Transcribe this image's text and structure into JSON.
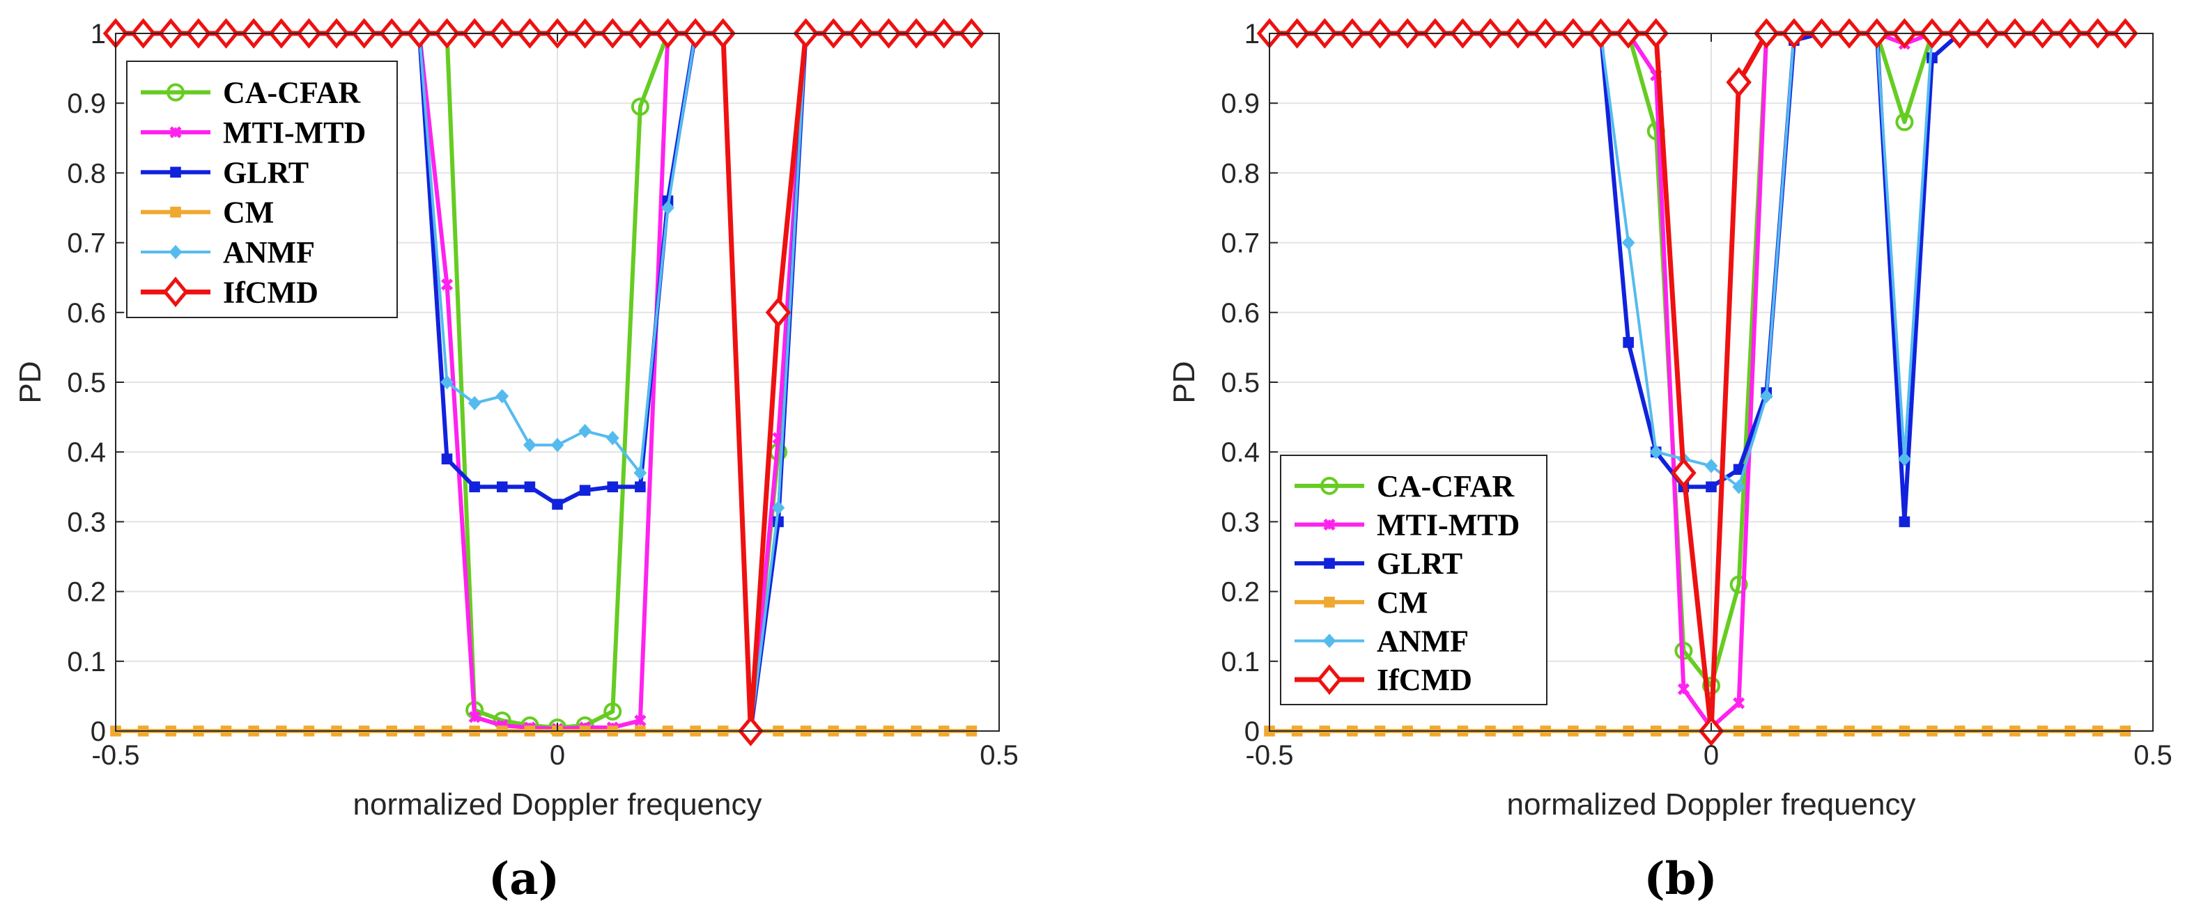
{
  "figure": {
    "panels": [
      "(a)",
      "(b)"
    ]
  },
  "chart_data": [
    {
      "type": "line",
      "panel_label": "(a)",
      "xlabel": "normalized Doppler frequency",
      "ylabel": "PD",
      "xlim": [
        -0.5,
        0.5
      ],
      "ylim": [
        0,
        1
      ],
      "xticks": [
        -0.5,
        0,
        0.5
      ],
      "xtick_labels": [
        "-0.5",
        "0",
        "0.5"
      ],
      "yticks": [
        0,
        0.1,
        0.2,
        0.3,
        0.4,
        0.5,
        0.6,
        0.7,
        0.8,
        0.9,
        1
      ],
      "ytick_labels": [
        "0",
        "0.1",
        "0.2",
        "0.3",
        "0.4",
        "0.5",
        "0.6",
        "0.7",
        "0.8",
        "0.9",
        "1"
      ],
      "grid": true,
      "legend_position": "top-left",
      "x": [
        -0.5,
        -0.46875,
        -0.4375,
        -0.40625,
        -0.375,
        -0.34375,
        -0.3125,
        -0.28125,
        -0.25,
        -0.21875,
        -0.1875,
        -0.15625,
        -0.125,
        -0.09375,
        -0.0625,
        -0.03125,
        0,
        0.03125,
        0.0625,
        0.09375,
        0.125,
        0.15625,
        0.1875,
        0.21875,
        0.25,
        0.28125,
        0.3125,
        0.34375,
        0.375,
        0.40625,
        0.4375,
        0.46875
      ],
      "series": [
        {
          "name": "CA-CFAR",
          "color": "#66cc22",
          "marker": "circle",
          "values": [
            1,
            1,
            1,
            1,
            1,
            1,
            1,
            1,
            1,
            1,
            1,
            1,
            1,
            0.03,
            0.015,
            0.008,
            0.005,
            0.008,
            0.028,
            0.895,
            1,
            1,
            1,
            0,
            0.4,
            1,
            1,
            1,
            1,
            1,
            1,
            1
          ]
        },
        {
          "name": "MTI-MTD",
          "color": "#ff22ee",
          "marker": "x",
          "values": [
            1,
            1,
            1,
            1,
            1,
            1,
            1,
            1,
            1,
            1,
            1,
            1,
            0.64,
            0.02,
            0.008,
            0.005,
            0.003,
            0.005,
            0.005,
            0.015,
            1,
            1,
            1,
            0,
            0.42,
            1,
            1,
            1,
            1,
            1,
            1,
            1
          ]
        },
        {
          "name": "GLRT",
          "color": "#1122dd",
          "marker": "square",
          "values": [
            1,
            1,
            1,
            1,
            1,
            1,
            1,
            1,
            1,
            1,
            1,
            1,
            0.39,
            0.35,
            0.35,
            0.35,
            0.325,
            0.345,
            0.35,
            0.35,
            0.76,
            1,
            1,
            0,
            0.3,
            1,
            1,
            1,
            1,
            1,
            1,
            1
          ]
        },
        {
          "name": "CM",
          "color": "#f0a830",
          "marker": "square",
          "values": [
            0,
            0,
            0,
            0,
            0,
            0,
            0,
            0,
            0,
            0,
            0,
            0,
            0,
            0,
            0,
            0,
            0,
            0,
            0,
            0,
            0,
            0,
            0,
            0,
            0,
            0,
            0,
            0,
            0,
            0,
            0,
            0
          ]
        },
        {
          "name": "ANMF",
          "color": "#55bbee",
          "marker": "diamond",
          "values": [
            1,
            1,
            1,
            1,
            1,
            1,
            1,
            1,
            1,
            1,
            1,
            1,
            0.5,
            0.47,
            0.48,
            0.41,
            0.41,
            0.43,
            0.42,
            0.37,
            0.75,
            1,
            1,
            0,
            0.32,
            1,
            1,
            1,
            1,
            1,
            1,
            1
          ]
        },
        {
          "name": "IfCMD",
          "color": "#ee1111",
          "marker": "diamond-open",
          "values": [
            1,
            1,
            1,
            1,
            1,
            1,
            1,
            1,
            1,
            1,
            1,
            1,
            1,
            1,
            1,
            1,
            1,
            1,
            1,
            1,
            1,
            1,
            1,
            0,
            0.6,
            1,
            1,
            1,
            1,
            1,
            1,
            1
          ]
        }
      ]
    },
    {
      "type": "line",
      "panel_label": "(b)",
      "xlabel": "normalized Doppler frequency",
      "ylabel": "PD",
      "xlim": [
        -0.5,
        0.5
      ],
      "ylim": [
        0,
        1
      ],
      "xticks": [
        -0.5,
        0,
        0.5
      ],
      "xtick_labels": [
        "-0.5",
        "0",
        "0.5"
      ],
      "yticks": [
        0,
        0.1,
        0.2,
        0.3,
        0.4,
        0.5,
        0.6,
        0.7,
        0.8,
        0.9,
        1
      ],
      "ytick_labels": [
        "0",
        "0.1",
        "0.2",
        "0.3",
        "0.4",
        "0.5",
        "0.6",
        "0.7",
        "0.8",
        "0.9",
        "1"
      ],
      "grid": true,
      "legend_position": "bottom-left",
      "x": [
        -0.5,
        -0.46875,
        -0.4375,
        -0.40625,
        -0.375,
        -0.34375,
        -0.3125,
        -0.28125,
        -0.25,
        -0.21875,
        -0.1875,
        -0.15625,
        -0.125,
        -0.09375,
        -0.0625,
        -0.03125,
        0,
        0.03125,
        0.0625,
        0.09375,
        0.125,
        0.15625,
        0.1875,
        0.21875,
        0.25,
        0.28125,
        0.3125,
        0.34375,
        0.375,
        0.40625,
        0.4375,
        0.46875
      ],
      "series": [
        {
          "name": "CA-CFAR",
          "color": "#66cc22",
          "marker": "circle",
          "values": [
            1,
            1,
            1,
            1,
            1,
            1,
            1,
            1,
            1,
            1,
            1,
            1,
            1,
            1,
            0.86,
            0.115,
            0.065,
            0.21,
            1,
            1,
            1,
            1,
            1,
            0.873,
            1,
            1,
            1,
            1,
            1,
            1,
            1,
            1
          ]
        },
        {
          "name": "MTI-MTD",
          "color": "#ff22ee",
          "marker": "x",
          "values": [
            1,
            1,
            1,
            1,
            1,
            1,
            1,
            1,
            1,
            1,
            1,
            1,
            1,
            1,
            0.94,
            0.06,
            0.005,
            0.04,
            1,
            1,
            1,
            1,
            1,
            0.985,
            1,
            1,
            1,
            1,
            1,
            1,
            1,
            1
          ]
        },
        {
          "name": "GLRT",
          "color": "#1122dd",
          "marker": "square",
          "values": [
            1,
            1,
            1,
            1,
            1,
            1,
            1,
            1,
            1,
            1,
            1,
            1,
            1,
            0.557,
            0.4,
            0.35,
            0.35,
            0.375,
            0.485,
            0.99,
            1,
            1,
            1,
            0.3,
            0.965,
            1,
            1,
            1,
            1,
            1,
            1,
            1
          ]
        },
        {
          "name": "CM",
          "color": "#f0a830",
          "marker": "square",
          "values": [
            0,
            0,
            0,
            0,
            0,
            0,
            0,
            0,
            0,
            0,
            0,
            0,
            0,
            0,
            0,
            0,
            0,
            0,
            0,
            0,
            0,
            0,
            0,
            0,
            0,
            0,
            0,
            0,
            0,
            0,
            0,
            0
          ]
        },
        {
          "name": "ANMF",
          "color": "#55bbee",
          "marker": "diamond",
          "values": [
            1,
            1,
            1,
            1,
            1,
            1,
            1,
            1,
            1,
            1,
            1,
            1,
            1,
            0.7,
            0.4,
            0.39,
            0.38,
            0.35,
            0.48,
            1,
            1,
            1,
            1,
            0.39,
            1,
            1,
            1,
            1,
            1,
            1,
            1,
            1
          ]
        },
        {
          "name": "IfCMD",
          "color": "#ee1111",
          "marker": "diamond-open",
          "values": [
            1,
            1,
            1,
            1,
            1,
            1,
            1,
            1,
            1,
            1,
            1,
            1,
            1,
            1,
            1,
            0.37,
            0,
            0.93,
            1,
            1,
            1,
            1,
            1,
            1,
            1,
            1,
            1,
            1,
            1,
            1,
            1,
            1
          ]
        }
      ]
    }
  ]
}
